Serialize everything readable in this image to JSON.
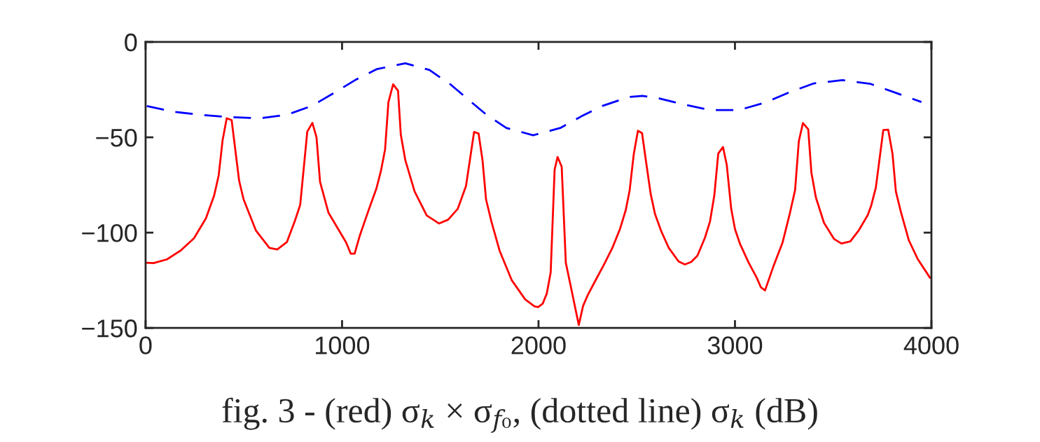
{
  "chart_data": {
    "type": "line",
    "annotations": [
      "fig. 3 - (red) σ$_{k}$ × σ$_{f₀}$, (dotted line) σ$_{k}$ (dB)"
    ],
    "xlim": [
      0,
      4000
    ],
    "xticks": [
      0,
      1000,
      2000,
      3000,
      4000
    ],
    "ylim": [
      -150,
      0
    ],
    "yticks": [
      {
        "value": 0,
        "label": "0"
      },
      {
        "value": -50,
        "label": "−50"
      },
      {
        "value": -100,
        "label": "−100"
      },
      {
        "value": -150,
        "label": "−150"
      }
    ],
    "grid": false,
    "series": [
      {
        "color": "#ff0000",
        "line_style": "solid",
        "x": [
          6,
          40,
          109,
          177,
          246,
          307,
          349,
          372,
          392,
          413,
          438,
          476,
          499,
          561,
          630,
          670,
          719,
          760,
          787,
          823,
          849,
          870,
          888,
          931,
          1020,
          1044,
          1064,
          1089,
          1130,
          1175,
          1198,
          1219,
          1236,
          1260,
          1285,
          1299,
          1322,
          1369,
          1431,
          1494,
          1540,
          1589,
          1631,
          1672,
          1695,
          1715,
          1733,
          1761,
          1802,
          1864,
          1932,
          1980,
          1998,
          2021,
          2042,
          2062,
          2082,
          2097,
          2118,
          2139,
          2163,
          2205,
          2227,
          2250,
          2294,
          2332,
          2376,
          2415,
          2444,
          2464,
          2485,
          2506,
          2527,
          2548,
          2571,
          2593,
          2625,
          2663,
          2713,
          2745,
          2777,
          2809,
          2847,
          2873,
          2895,
          2915,
          2939,
          2958,
          2981,
          3000,
          3026,
          3070,
          3111,
          3132,
          3153,
          3198,
          3242,
          3280,
          3306,
          3325,
          3346,
          3373,
          3389,
          3412,
          3453,
          3504,
          3542,
          3587,
          3631,
          3676,
          3694,
          3717,
          3755,
          3780,
          3802,
          3819,
          3844,
          3885,
          3930,
          3993
        ],
        "values": [
          -115.8,
          -116,
          -114,
          -109.5,
          -103,
          -92.5,
          -80.5,
          -70,
          -51.5,
          -40,
          -41,
          -72.7,
          -82.6,
          -98.8,
          -108,
          -108.8,
          -105,
          -93.8,
          -85.4,
          -47,
          -42.4,
          -50,
          -73.4,
          -89.6,
          -105,
          -111,
          -111,
          -102,
          -89.7,
          -76.8,
          -67.6,
          -56.4,
          -31.6,
          -22.2,
          -25.6,
          -48.5,
          -62,
          -78.3,
          -91,
          -95.2,
          -93.2,
          -87.5,
          -75.5,
          -47.2,
          -48,
          -62,
          -82.6,
          -94.5,
          -109.5,
          -125,
          -135,
          -138.7,
          -139,
          -137.3,
          -132,
          -120.8,
          -67,
          -60.3,
          -65.4,
          -115.8,
          -127.6,
          -148.4,
          -138.4,
          -132.9,
          -124.3,
          -117,
          -108,
          -98,
          -88.2,
          -77.7,
          -58.7,
          -46.6,
          -47.8,
          -63.2,
          -79.7,
          -90.2,
          -99.3,
          -108,
          -115.1,
          -116.7,
          -115.4,
          -112.1,
          -102.7,
          -94.1,
          -80.4,
          -58.5,
          -55.1,
          -64.3,
          -87.6,
          -98.1,
          -106,
          -115.8,
          -123.7,
          -128.7,
          -130.3,
          -117,
          -105.3,
          -89.6,
          -77.7,
          -52.1,
          -42.5,
          -45.8,
          -68.5,
          -81.6,
          -94.8,
          -103.3,
          -105.7,
          -104.6,
          -98.7,
          -90.8,
          -85.6,
          -76.4,
          -46.2,
          -46,
          -58.7,
          -78.4,
          -88.9,
          -104,
          -113.8,
          -123.7
        ]
      },
      {
        "color": "#0000ff",
        "line_style": "dashed",
        "x": [
          6,
          143,
          287,
          424,
          581,
          719,
          849,
          959,
          1068,
          1178,
          1322,
          1445,
          1555,
          1644,
          1733,
          1836,
          1973,
          2111,
          2218,
          2326,
          2459,
          2529,
          2599,
          2740,
          2873,
          3020,
          3153,
          3274,
          3402,
          3547,
          3688,
          3822,
          3949
        ],
        "values": [
          -33.6,
          -36.6,
          -38.3,
          -39.4,
          -40,
          -38.2,
          -33.4,
          -26.7,
          -19.9,
          -14.2,
          -11.2,
          -14.7,
          -22.5,
          -30.3,
          -38,
          -45.1,
          -48.9,
          -45.1,
          -39,
          -33.5,
          -28.9,
          -28.3,
          -29.2,
          -32.8,
          -35.7,
          -35.7,
          -31.8,
          -26.5,
          -21.7,
          -20,
          -21.9,
          -26.8,
          -31.5
        ]
      }
    ]
  }
}
